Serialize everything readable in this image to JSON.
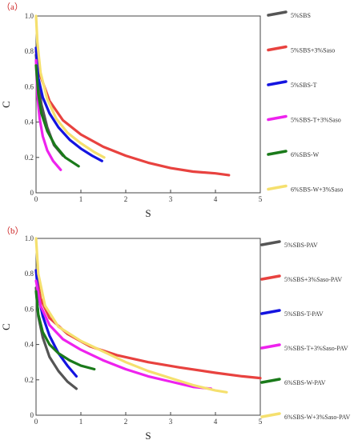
{
  "chart_data": [
    {
      "type": "line",
      "panel_label": "（a）",
      "xlabel": "S",
      "ylabel": "C",
      "xlim": [
        0,
        5
      ],
      "ylim": [
        0,
        1.0
      ],
      "xticks": [
        "0",
        "1",
        "2",
        "3",
        "4",
        "5"
      ],
      "yticks": [
        "0",
        "0.2",
        "0.4",
        "0.6",
        "0.8",
        "1.0"
      ],
      "grid": false,
      "legend_position": "right",
      "series": [
        {
          "name": "5%SBS",
          "color": "#555555",
          "x": [
            0,
            0.05,
            0.12,
            0.25,
            0.4,
            0.6
          ],
          "y": [
            0.78,
            0.62,
            0.5,
            0.37,
            0.27,
            0.21
          ]
        },
        {
          "name": "5%SBS+3%Saso",
          "color": "#e8423f",
          "x": [
            0,
            0.1,
            0.3,
            0.6,
            1.0,
            1.5,
            2.0,
            2.5,
            3.0,
            3.5,
            4.0,
            4.3
          ],
          "y": [
            0.8,
            0.66,
            0.52,
            0.41,
            0.33,
            0.26,
            0.21,
            0.17,
            0.14,
            0.12,
            0.11,
            0.1
          ]
        },
        {
          "name": "5%SBS-T",
          "color": "#1414e0",
          "x": [
            0,
            0.05,
            0.15,
            0.3,
            0.5,
            0.75,
            1.0,
            1.25,
            1.47
          ],
          "y": [
            0.82,
            0.65,
            0.54,
            0.45,
            0.37,
            0.3,
            0.25,
            0.21,
            0.18
          ]
        },
        {
          "name": "5%SBS-T+3%Saso",
          "color": "#ee22ee",
          "x": [
            0,
            0.03,
            0.08,
            0.15,
            0.25,
            0.38,
            0.55
          ],
          "y": [
            0.75,
            0.55,
            0.42,
            0.32,
            0.24,
            0.18,
            0.13
          ]
        },
        {
          "name": "6%SBS-W",
          "color": "#1a7a1a",
          "x": [
            0,
            0.05,
            0.12,
            0.25,
            0.42,
            0.65,
            0.95
          ],
          "y": [
            0.72,
            0.56,
            0.45,
            0.35,
            0.27,
            0.2,
            0.15
          ]
        },
        {
          "name": "6%SBS-W+3%Saso",
          "color": "#f5e06e",
          "x": [
            0,
            0.03,
            0.1,
            0.25,
            0.45,
            0.7,
            1.0,
            1.3,
            1.52
          ],
          "y": [
            1.0,
            0.85,
            0.68,
            0.53,
            0.42,
            0.34,
            0.28,
            0.23,
            0.2
          ]
        }
      ]
    },
    {
      "type": "line",
      "panel_label": "（b）",
      "xlabel": "S",
      "ylabel": "C",
      "xlim": [
        0,
        5
      ],
      "ylim": [
        0,
        1.0
      ],
      "xticks": [
        "0",
        "1",
        "2",
        "3",
        "4",
        "5"
      ],
      "yticks": [
        "0",
        "0.2",
        "0.4",
        "0.6",
        "0.8",
        "1.0"
      ],
      "grid": false,
      "legend_position": "right",
      "series": [
        {
          "name": "5%SBS-PAV",
          "color": "#555555",
          "x": [
            0,
            0.05,
            0.15,
            0.3,
            0.5,
            0.7,
            0.9
          ],
          "y": [
            0.72,
            0.56,
            0.44,
            0.33,
            0.25,
            0.19,
            0.15
          ]
        },
        {
          "name": "5%SBS+3%Saso-PAV",
          "color": "#e8423f",
          "x": [
            0,
            0.1,
            0.3,
            0.7,
            1.2,
            1.8,
            2.5,
            3.2,
            4.0,
            4.6,
            5.0
          ],
          "y": [
            0.82,
            0.66,
            0.55,
            0.46,
            0.39,
            0.34,
            0.3,
            0.27,
            0.24,
            0.22,
            0.21
          ]
        },
        {
          "name": "5%SBS-T-PAV",
          "color": "#1414e0",
          "x": [
            0,
            0.05,
            0.15,
            0.3,
            0.5,
            0.7,
            0.9
          ],
          "y": [
            0.82,
            0.68,
            0.56,
            0.45,
            0.35,
            0.28,
            0.22
          ]
        },
        {
          "name": "5%SBS-T+3%Saso-PAV",
          "color": "#ee22ee",
          "x": [
            0,
            0.1,
            0.3,
            0.6,
            1.0,
            1.5,
            2.0,
            2.5,
            3.0,
            3.5,
            3.9
          ],
          "y": [
            0.76,
            0.62,
            0.51,
            0.43,
            0.37,
            0.31,
            0.26,
            0.22,
            0.19,
            0.16,
            0.15
          ]
        },
        {
          "name": "6%SBS-W-PAV",
          "color": "#1a7a1a",
          "x": [
            0,
            0.05,
            0.15,
            0.3,
            0.5,
            0.75,
            1.0,
            1.3
          ],
          "y": [
            0.7,
            0.57,
            0.47,
            0.4,
            0.35,
            0.31,
            0.28,
            0.26
          ]
        },
        {
          "name": "6%SBS-W+3%Saso-PAV",
          "color": "#f5e06e",
          "x": [
            0,
            0.05,
            0.2,
            0.5,
            1.0,
            1.5,
            2.0,
            2.5,
            3.0,
            3.5,
            4.0,
            4.25
          ],
          "y": [
            1.0,
            0.8,
            0.62,
            0.5,
            0.42,
            0.36,
            0.3,
            0.25,
            0.21,
            0.17,
            0.14,
            0.13
          ]
        }
      ]
    }
  ]
}
